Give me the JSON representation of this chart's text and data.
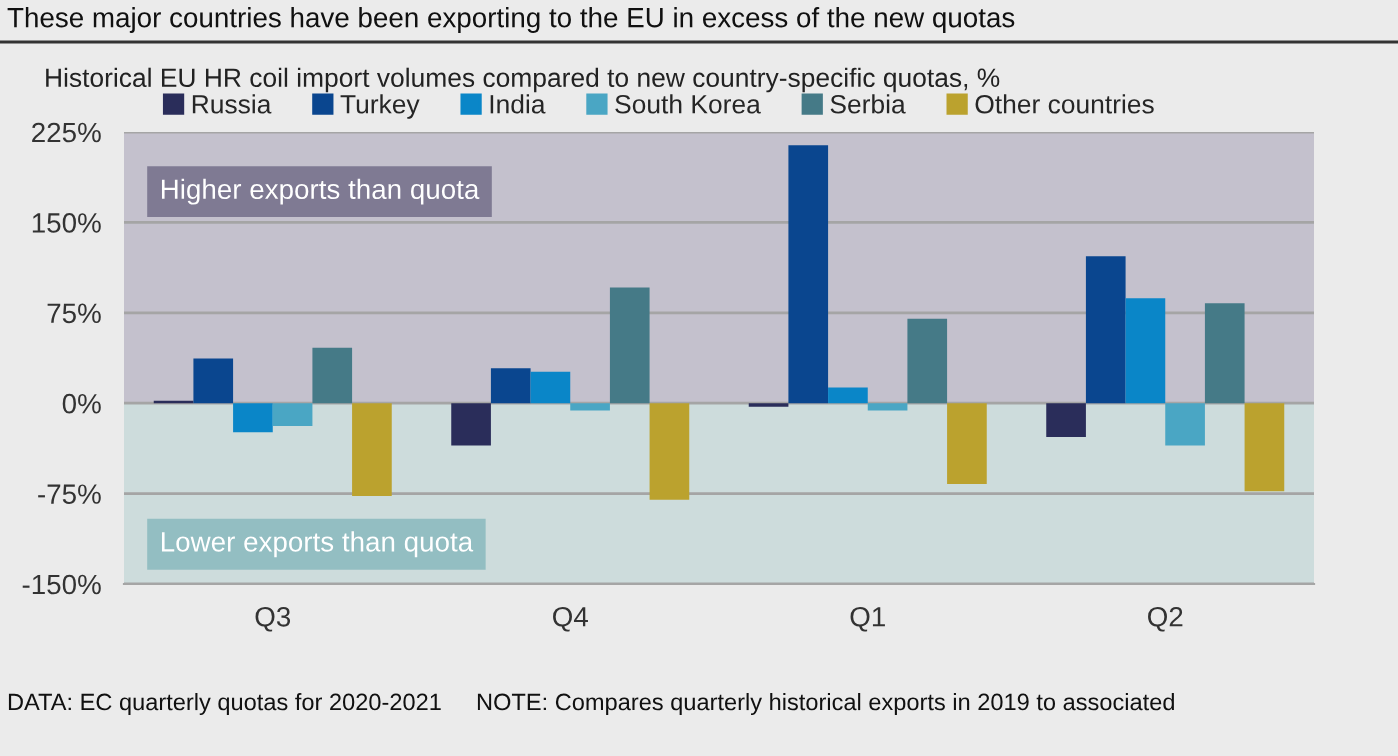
{
  "chart_data": {
    "type": "bar",
    "title": "These major countries have been exporting to the EU in excess of the new quotas",
    "subtitle": "Historical EU HR coil import volumes compared to new country-specific quotas, %",
    "categories": [
      "Q3",
      "Q4",
      "Q1",
      "Q2"
    ],
    "series": [
      {
        "name": "Russia",
        "color": "#2a2d5a",
        "values": [
          2,
          -35,
          -3,
          -28
        ]
      },
      {
        "name": "Turkey",
        "color": "#0a468f",
        "values": [
          37,
          29,
          214,
          122
        ]
      },
      {
        "name": "India",
        "color": "#0a86c8",
        "values": [
          -24,
          26,
          13,
          87
        ]
      },
      {
        "name": "South Korea",
        "color": "#4aa6c4",
        "values": [
          -19,
          -6,
          -6,
          -35
        ]
      },
      {
        "name": "Serbia",
        "color": "#457a87",
        "values": [
          46,
          96,
          70,
          83
        ]
      },
      {
        "name": "Other countries",
        "color": "#bba22e",
        "values": [
          -77,
          -80,
          -67,
          -73
        ]
      }
    ],
    "ylim": [
      -150,
      225
    ],
    "yticks": [
      {
        "value": -150,
        "label": "-150%"
      },
      {
        "value": -75,
        "label": "-75%"
      },
      {
        "value": 0,
        "label": "0%"
      },
      {
        "value": 75,
        "label": "75%"
      },
      {
        "value": 150,
        "label": "150%"
      },
      {
        "value": 225,
        "label": "225%"
      }
    ],
    "grid": "y",
    "legend": "top",
    "bands": [
      {
        "axis": "y",
        "from": 0,
        "to": 225,
        "label": "Higher exports than quota",
        "color": "#c4c1cd"
      },
      {
        "axis": "y",
        "from": -150,
        "to": 0,
        "label": "Lower exports than quota",
        "color": "#cddcdc"
      }
    ],
    "annotations": [
      "DATA: EC quarterly quotas for 2020-2021",
      "NOTE: Compares quarterly historical exports in 2019 to associated"
    ]
  }
}
